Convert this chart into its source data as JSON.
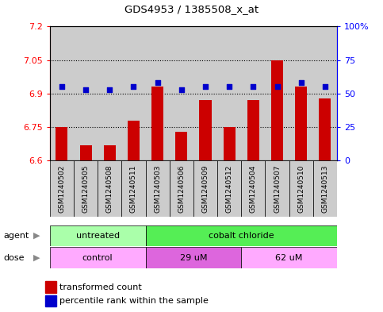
{
  "title": "GDS4953 / 1385508_x_at",
  "samples": [
    "GSM1240502",
    "GSM1240505",
    "GSM1240508",
    "GSM1240511",
    "GSM1240503",
    "GSM1240506",
    "GSM1240509",
    "GSM1240512",
    "GSM1240504",
    "GSM1240507",
    "GSM1240510",
    "GSM1240513"
  ],
  "bar_values": [
    6.75,
    6.67,
    6.67,
    6.78,
    6.93,
    6.73,
    6.87,
    6.75,
    6.87,
    7.05,
    6.93,
    6.88
  ],
  "scatter_pct": [
    55,
    53,
    53,
    55,
    58,
    53,
    55,
    55,
    55,
    55,
    58,
    55
  ],
  "bar_color": "#cc0000",
  "scatter_color": "#0000cc",
  "ymin": 6.6,
  "ymax": 7.2,
  "yticks": [
    6.6,
    6.75,
    6.9,
    7.05,
    7.2
  ],
  "ytick_labels": [
    "6.6",
    "6.75",
    "6.9",
    "7.05",
    "7.2"
  ],
  "y2min": 0,
  "y2max": 100,
  "y2ticks": [
    0,
    25,
    50,
    75,
    100
  ],
  "y2tick_labels": [
    "0",
    "25",
    "50",
    "75",
    "100%"
  ],
  "hlines": [
    6.75,
    6.9,
    7.05
  ],
  "agent_groups": [
    {
      "label": "untreated",
      "start": 0,
      "end": 4,
      "color": "#aaffaa"
    },
    {
      "label": "cobalt chloride",
      "start": 4,
      "end": 12,
      "color": "#55ee55"
    }
  ],
  "dose_groups": [
    {
      "label": "control",
      "start": 0,
      "end": 4,
      "color": "#ffaaff"
    },
    {
      "label": "29 uM",
      "start": 4,
      "end": 8,
      "color": "#dd66dd"
    },
    {
      "label": "62 uM",
      "start": 8,
      "end": 12,
      "color": "#ffaaff"
    }
  ],
  "legend_bar_label": "transformed count",
  "legend_scatter_label": "percentile rank within the sample",
  "agent_label": "agent",
  "dose_label": "dose",
  "bar_width": 0.5,
  "col_bg": "#cccccc",
  "plot_bg": "#ffffff"
}
